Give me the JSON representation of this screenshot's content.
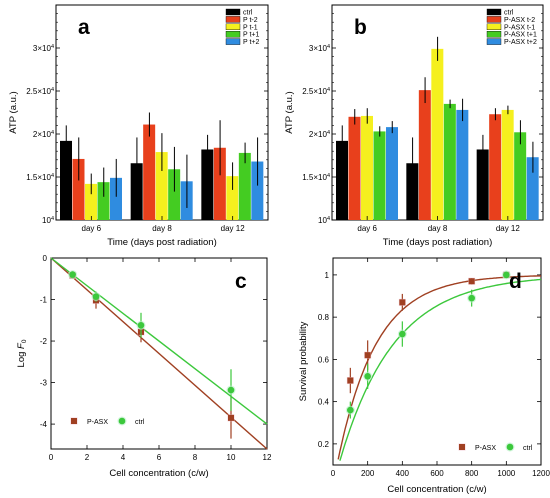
{
  "chart_data": [
    {
      "panel": "a",
      "type": "bar",
      "xlabel": "Time (days post radiation)",
      "ylabel": "ATP (a.u.)",
      "ylim": [
        10000,
        35000
      ],
      "yticks": [
        "10^4",
        "1.5×10^4",
        "2×10^4",
        "2.5×10^4",
        "3×10^4"
      ],
      "categories": [
        "day 6",
        "day 8",
        "day 12"
      ],
      "legend_position": "top-right",
      "series": [
        {
          "name": "ctrl",
          "color": "#000000",
          "values": [
            19200,
            16600,
            18200
          ],
          "err": [
            1800,
            3000,
            1700
          ]
        },
        {
          "name": "P t-2",
          "color": "#e8401c",
          "values": [
            17100,
            21100,
            18400
          ],
          "err": [
            2500,
            1400,
            3200
          ]
        },
        {
          "name": "P t-1",
          "color": "#f5f01e",
          "values": [
            14200,
            17900,
            15100
          ],
          "err": [
            1200,
            2200,
            1600
          ]
        },
        {
          "name": "P t+1",
          "color": "#44cc22",
          "values": [
            14400,
            15900,
            17800
          ],
          "err": [
            1700,
            2600,
            1200
          ]
        },
        {
          "name": "P t+2",
          "color": "#2f8ce0",
          "values": [
            14900,
            14500,
            16800
          ],
          "err": [
            2200,
            3100,
            2800
          ]
        }
      ]
    },
    {
      "panel": "b",
      "type": "bar",
      "xlabel": "Time (days post radiation)",
      "ylabel": "ATP (a.u.)",
      "ylim": [
        10000,
        35000
      ],
      "yticks": [
        "10^4",
        "1.5×10^4",
        "2×10^4",
        "2.5×10^4",
        "3×10^4"
      ],
      "categories": [
        "day 6",
        "day 8",
        "day 12"
      ],
      "legend_position": "top-right",
      "series": [
        {
          "name": "ctrl",
          "color": "#000000",
          "values": [
            19200,
            16600,
            18200
          ],
          "err": [
            1800,
            3000,
            1700
          ]
        },
        {
          "name": "P-ASX t-2",
          "color": "#e8401c",
          "values": [
            22000,
            25100,
            22300
          ],
          "err": [
            900,
            1500,
            700
          ]
        },
        {
          "name": "P-ASX t-1",
          "color": "#f5f01e",
          "values": [
            22100,
            29900,
            22800
          ],
          "err": [
            900,
            1400,
            500
          ]
        },
        {
          "name": "P-ASX t+1",
          "color": "#44cc22",
          "values": [
            20300,
            23500,
            20200
          ],
          "err": [
            600,
            500,
            1400
          ]
        },
        {
          "name": "P-ASX t+2",
          "color": "#2f8ce0",
          "values": [
            20800,
            22800,
            17300
          ],
          "err": [
            700,
            1300,
            1800
          ]
        }
      ]
    },
    {
      "panel": "c",
      "type": "scatter",
      "xlabel": "Cell concentration (c/w)",
      "ylabel": "Log F0",
      "xlim": [
        0,
        12
      ],
      "ylim": [
        -4.6,
        0
      ],
      "xticks": [
        0,
        2,
        4,
        6,
        8,
        10,
        12
      ],
      "yticks": [
        0,
        -1,
        -2,
        -3,
        -4
      ],
      "legend_position": "bottom-left",
      "series": [
        {
          "name": "P-ASX",
          "color": "#a04022",
          "marker": "square",
          "x": [
            1.2,
            2.5,
            5,
            10
          ],
          "y": [
            -0.42,
            -1.02,
            -1.78,
            -3.85
          ],
          "err": [
            0.08,
            0.2,
            0.25,
            0.5
          ],
          "fit": {
            "x": [
              0,
              12
            ],
            "y": [
              0,
              -4.6
            ]
          }
        },
        {
          "name": "ctrl",
          "color": "#3cc83c",
          "marker": "circle",
          "x": [
            1.2,
            2.5,
            5,
            10
          ],
          "y": [
            -0.4,
            -0.93,
            -1.62,
            -3.18
          ],
          "err": [
            0.08,
            0.12,
            0.3,
            0.5
          ],
          "fit": {
            "x": [
              0,
              12
            ],
            "y": [
              0,
              -4.0
            ]
          }
        }
      ]
    },
    {
      "panel": "d",
      "type": "scatter",
      "xlabel": "Cell concentration (c/w)",
      "ylabel": "Survival probability",
      "xlim": [
        0,
        1200
      ],
      "ylim": [
        0.1,
        1.08
      ],
      "xticks": [
        0,
        200,
        400,
        600,
        800,
        1000,
        1200
      ],
      "yticks": [
        0.2,
        0.4,
        0.6,
        0.8,
        1
      ],
      "legend_position": "bottom-right",
      "series": [
        {
          "name": "P-ASX",
          "color": "#a04022",
          "marker": "square",
          "x": [
            100,
            200,
            400,
            800,
            1000
          ],
          "y": [
            0.5,
            0.62,
            0.87,
            0.97,
            1.0
          ],
          "err": [
            0.06,
            0.07,
            0.04,
            0.015,
            0.015
          ],
          "fit_rate": 0.0045
        },
        {
          "name": "ctrl",
          "color": "#3cc83c",
          "marker": "circle",
          "x": [
            100,
            200,
            400,
            800,
            1000
          ],
          "y": [
            0.36,
            0.52,
            0.72,
            0.89,
            1.0
          ],
          "err": [
            0.04,
            0.06,
            0.06,
            0.04,
            0.015
          ],
          "fit_rate": 0.0032
        }
      ]
    }
  ]
}
